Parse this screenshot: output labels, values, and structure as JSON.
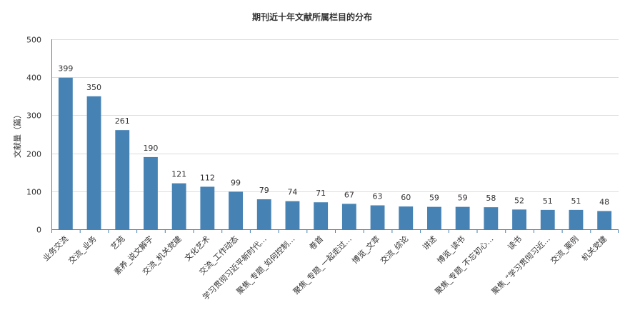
{
  "chart_data": {
    "type": "bar",
    "title": "期刊近十年文献所属栏目的分布",
    "ylabel": "文献量（篇）",
    "xlabel": "",
    "ylim": [
      0,
      500
    ],
    "yticks": [
      0,
      100,
      200,
      300,
      400,
      500
    ],
    "grid": true,
    "color": "#4682b4",
    "categories": [
      "业务交流",
      "交流_业务",
      "艺苑",
      "素养_说文解字",
      "交流_机关党建",
      "文化艺术",
      "交流_工作动态",
      "学习贯彻习近平新时代…",
      "聚焦_专题_如何控制…",
      "卷首",
      "聚焦_专题_一起走过…",
      "博览_文萃",
      "交流_综论",
      "讲述",
      "博览_读书",
      "聚焦_专题_不忘初心…",
      "读书",
      "聚焦_“学习贯彻习近…",
      "交流_案例",
      "机关党建"
    ],
    "values": [
      399,
      350,
      261,
      190,
      121,
      112,
      99,
      79,
      74,
      71,
      67,
      63,
      60,
      59,
      59,
      58,
      52,
      51,
      51,
      48
    ]
  }
}
